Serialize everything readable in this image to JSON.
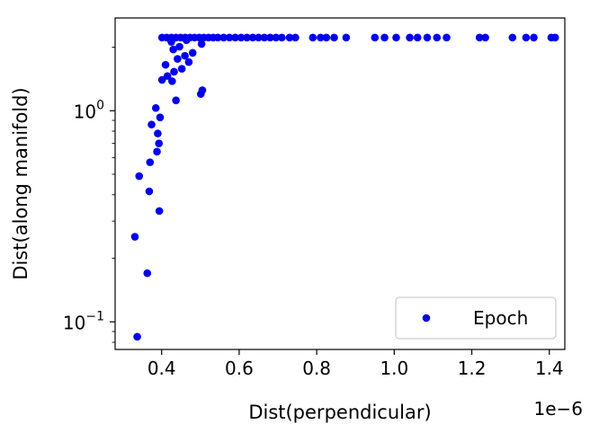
{
  "chart_data": {
    "type": "scatter",
    "title": "",
    "xlabel": "Dist(perpendicular)",
    "ylabel": "Dist(along manifold)",
    "x_offset_label": "1e−6",
    "x_scale_factor": 1e-06,
    "xlim": [
      0.28,
      1.44
    ],
    "ylim": [
      0.074,
      2.75
    ],
    "yscale": "log",
    "grid": false,
    "legend_position": "lower right",
    "x_ticks": [
      {
        "value": 0.4,
        "label": "0.4"
      },
      {
        "value": 0.6,
        "label": "0.6"
      },
      {
        "value": 0.8,
        "label": "0.8"
      },
      {
        "value": 1.0,
        "label": "1.0"
      },
      {
        "value": 1.2,
        "label": "1.2"
      },
      {
        "value": 1.4,
        "label": "1.4"
      }
    ],
    "y_ticks": [
      {
        "value": 1.0,
        "base": "10",
        "exp": "0"
      },
      {
        "value": 0.1,
        "base": "10",
        "exp": "−1"
      }
    ],
    "series": [
      {
        "name": "Epoch",
        "color": "#0000ee",
        "marker": "circle",
        "points": [
          [
            0.337,
            0.085
          ],
          [
            0.363,
            0.17
          ],
          [
            0.331,
            0.253
          ],
          [
            0.394,
            0.335
          ],
          [
            0.368,
            0.415
          ],
          [
            0.342,
            0.49
          ],
          [
            0.37,
            0.57
          ],
          [
            0.388,
            0.64
          ],
          [
            0.393,
            0.7
          ],
          [
            0.39,
            0.78
          ],
          [
            0.374,
            0.86
          ],
          [
            0.396,
            0.93
          ],
          [
            0.385,
            1.03
          ],
          [
            0.437,
            1.12
          ],
          [
            0.501,
            1.2
          ],
          [
            0.505,
            1.25
          ],
          [
            0.401,
            1.4
          ],
          [
            0.427,
            1.38
          ],
          [
            0.415,
            1.46
          ],
          [
            0.432,
            1.53
          ],
          [
            0.452,
            1.58
          ],
          [
            0.41,
            1.65
          ],
          [
            0.47,
            1.7
          ],
          [
            0.441,
            1.76
          ],
          [
            0.46,
            1.82
          ],
          [
            0.48,
            1.88
          ],
          [
            0.43,
            1.95
          ],
          [
            0.446,
            2.01
          ],
          [
            0.503,
            2.07
          ],
          [
            0.425,
            2.12
          ],
          [
            0.464,
            2.16
          ],
          [
            0.401,
            2.22
          ],
          [
            0.413,
            2.22
          ],
          [
            0.425,
            2.22
          ],
          [
            0.437,
            2.22
          ],
          [
            0.449,
            2.22
          ],
          [
            0.461,
            2.22
          ],
          [
            0.473,
            2.22
          ],
          [
            0.485,
            2.22
          ],
          [
            0.497,
            2.22
          ],
          [
            0.509,
            2.22
          ],
          [
            0.521,
            2.22
          ],
          [
            0.533,
            2.22
          ],
          [
            0.545,
            2.22
          ],
          [
            0.56,
            2.22
          ],
          [
            0.575,
            2.22
          ],
          [
            0.59,
            2.22
          ],
          [
            0.605,
            2.22
          ],
          [
            0.62,
            2.22
          ],
          [
            0.635,
            2.22
          ],
          [
            0.65,
            2.22
          ],
          [
            0.665,
            2.22
          ],
          [
            0.68,
            2.22
          ],
          [
            0.695,
            2.22
          ],
          [
            0.71,
            2.22
          ],
          [
            0.73,
            2.22
          ],
          [
            0.745,
            2.22
          ],
          [
            0.79,
            2.22
          ],
          [
            0.81,
            2.22
          ],
          [
            0.825,
            2.22
          ],
          [
            0.845,
            2.22
          ],
          [
            0.876,
            2.22
          ],
          [
            0.95,
            2.22
          ],
          [
            0.975,
            2.22
          ],
          [
            1.005,
            2.22
          ],
          [
            1.04,
            2.22
          ],
          [
            1.06,
            2.22
          ],
          [
            1.085,
            2.22
          ],
          [
            1.11,
            2.22
          ],
          [
            1.135,
            2.22
          ],
          [
            1.22,
            2.22
          ],
          [
            1.235,
            2.22
          ],
          [
            1.305,
            2.22
          ],
          [
            1.34,
            2.22
          ],
          [
            1.36,
            2.22
          ],
          [
            1.405,
            2.22
          ],
          [
            1.415,
            2.22
          ]
        ]
      }
    ]
  }
}
